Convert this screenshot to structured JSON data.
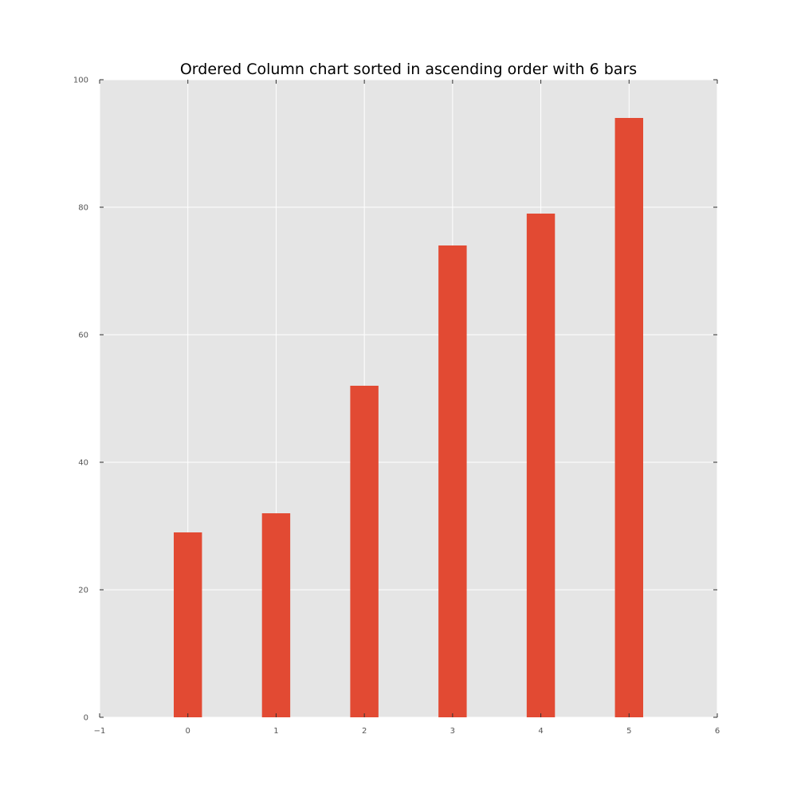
{
  "chart_data": {
    "type": "bar",
    "title": "Ordered Column chart sorted in ascending order with 6 bars",
    "xlabel": "",
    "ylabel": "",
    "x": [
      0,
      1,
      2,
      3,
      4,
      5
    ],
    "values": [
      29,
      32,
      52,
      74,
      79,
      94
    ],
    "bar_width": 0.32,
    "xlim": [
      -1,
      6
    ],
    "ylim": [
      0,
      100
    ],
    "xticks": [
      -1,
      0,
      1,
      2,
      3,
      4,
      5,
      6
    ],
    "xtick_labels": [
      "−1",
      "0",
      "1",
      "2",
      "3",
      "4",
      "5",
      "6"
    ],
    "yticks": [
      0,
      20,
      40,
      60,
      80,
      100
    ],
    "ytick_labels": [
      "0",
      "20",
      "40",
      "60",
      "80",
      "100"
    ],
    "grid": true,
    "legend": "none",
    "colors": {
      "bar": "#E24A33",
      "plot_background": "#E5E5E5",
      "grid": "#FFFFFF",
      "tick_label": "#555555",
      "title": "#000000"
    }
  }
}
